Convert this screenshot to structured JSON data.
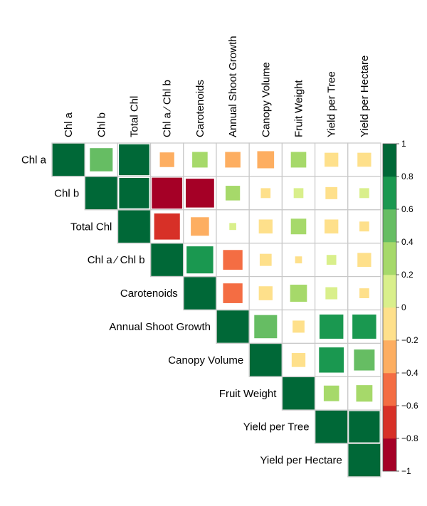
{
  "chart_data": {
    "type": "heatmap",
    "title": "",
    "variables": [
      "Chl a",
      "Chl b",
      "Total Chl",
      "Chl a/Chl b",
      "Carotenoids",
      "Annual Shoot Growth",
      "Canopy Volume",
      "Fruit Weight",
      "Yield per Tree",
      "Yield per Hectare"
    ],
    "display_labels": {
      "row": [
        "Chl  a",
        "Chl  b",
        "Total Chl",
        "Chl  a ⁄ Chl  b",
        "Carotenoids",
        "Annual Shoot Growth",
        "Canopy Volume",
        "Fruit Weight",
        "Yield per Tree",
        "Yield per Hectare"
      ],
      "column": [
        "Chl  a",
        "Chl  b",
        "Total Chl",
        "Chl  a ⁄ Chl  b",
        "Carotenoids",
        "Annual Shoot Growth",
        "Canopy Volume",
        "Fruit Weight",
        "Yield per Tree",
        "Yield per Hectare"
      ]
    },
    "layout": "upper-triangle",
    "matrix": [
      [
        1.0,
        0.55,
        0.98,
        -0.22,
        0.25,
        -0.25,
        -0.3,
        0.25,
        -0.2,
        -0.2
      ],
      [
        null,
        1.0,
        0.95,
        -0.98,
        -0.85,
        0.22,
        -0.1,
        0.1,
        -0.15,
        0.1
      ],
      [
        null,
        null,
        1.0,
        -0.7,
        -0.35,
        0.05,
        -0.2,
        0.25,
        -0.2,
        -0.1
      ],
      [
        null,
        null,
        null,
        1.0,
        0.75,
        -0.4,
        -0.15,
        -0.05,
        0.1,
        -0.2
      ],
      [
        null,
        null,
        null,
        null,
        1.0,
        -0.4,
        -0.2,
        0.3,
        0.15,
        -0.1
      ],
      [
        null,
        null,
        null,
        null,
        null,
        1.0,
        0.55,
        -0.15,
        0.6,
        0.6
      ],
      [
        null,
        null,
        null,
        null,
        null,
        null,
        1.0,
        -0.2,
        0.65,
        0.45
      ],
      [
        null,
        null,
        null,
        null,
        null,
        null,
        null,
        1.0,
        0.25,
        0.28
      ],
      [
        null,
        null,
        null,
        null,
        null,
        null,
        null,
        null,
        1.0,
        1.0
      ],
      [
        null,
        null,
        null,
        null,
        null,
        null,
        null,
        null,
        null,
        1.0
      ]
    ],
    "colorbar": {
      "range": [
        -1,
        1
      ],
      "ticks": [
        "−1",
        "−0.8",
        "−0.6",
        "−0.4",
        "−0.2",
        "0",
        "0.2",
        "0.4",
        "0.6",
        "0.8",
        "1"
      ],
      "bins": [
        "#a50026",
        "#d73027",
        "#f46d43",
        "#fdae61",
        "#fee08b",
        "#d9ef8b",
        "#a6d96a",
        "#66bd63",
        "#1a9850",
        "#006837"
      ]
    }
  }
}
